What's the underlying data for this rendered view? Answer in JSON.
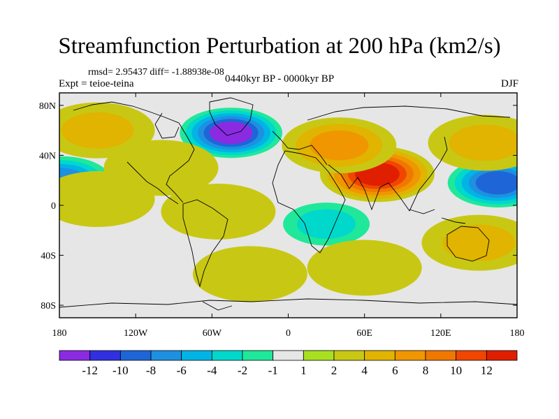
{
  "title": "Streamfunction Perturbation at 200 hPa (km2/s)",
  "stats": "rmsd= 2.95437 diff= -1.88938e-08",
  "experiment": "Expt = teioe-teina",
  "period": "0440kyr BP - 0000kyr BP",
  "season": "DJF",
  "map": {
    "lon_range": [
      -180,
      180
    ],
    "lat_range": [
      -90,
      90
    ],
    "lat_ticks": [
      {
        "value": 80,
        "label": "80N"
      },
      {
        "value": 40,
        "label": "40N"
      },
      {
        "value": 0,
        "label": "0"
      },
      {
        "value": -40,
        "label": "40S"
      },
      {
        "value": -80,
        "label": "80S"
      }
    ],
    "lon_ticks": [
      {
        "value": -180,
        "label": "180"
      },
      {
        "value": -120,
        "label": "120W"
      },
      {
        "value": -60,
        "label": "60W"
      },
      {
        "value": 0,
        "label": "0"
      },
      {
        "value": 60,
        "label": "60E"
      },
      {
        "value": 120,
        "label": "120E"
      },
      {
        "value": 180,
        "label": "180"
      }
    ],
    "background_color": "#e6e6e6",
    "anomalies": [
      {
        "lon": -45,
        "lat": 58,
        "level": -12
      },
      {
        "lon": 165,
        "lat": 18,
        "level": -10
      },
      {
        "lon": -178,
        "lat": 20,
        "level": -8
      },
      {
        "lon": 30,
        "lat": -15,
        "level": -4
      },
      {
        "lon": -150,
        "lat": 60,
        "level": 4
      },
      {
        "lon": 70,
        "lat": 25,
        "level": 12
      },
      {
        "lon": 40,
        "lat": 48,
        "level": 6
      },
      {
        "lon": 155,
        "lat": 50,
        "level": 4
      },
      {
        "lon": 150,
        "lat": -30,
        "level": 4
      },
      {
        "lon": -150,
        "lat": 5,
        "level": 2
      },
      {
        "lon": 60,
        "lat": -50,
        "level": 2
      },
      {
        "lon": -55,
        "lat": -5,
        "level": 2
      },
      {
        "lon": -100,
        "lat": 30,
        "level": 2
      },
      {
        "lon": -30,
        "lat": -55,
        "level": 2
      }
    ]
  },
  "colorbar": {
    "colors": [
      "#8a2be2",
      "#3030e0",
      "#1e66d8",
      "#1e90e0",
      "#00b4e6",
      "#00d8cc",
      "#20e89a",
      "#e6e6e6",
      "#a8e020",
      "#c8c814",
      "#e0b400",
      "#f09600",
      "#f07800",
      "#f04600",
      "#e01e00"
    ],
    "labels": [
      "-12",
      "-10",
      "-8",
      "-6",
      "-4",
      "-2",
      "-1",
      "1",
      "2",
      "4",
      "6",
      "8",
      "10",
      "12"
    ]
  }
}
